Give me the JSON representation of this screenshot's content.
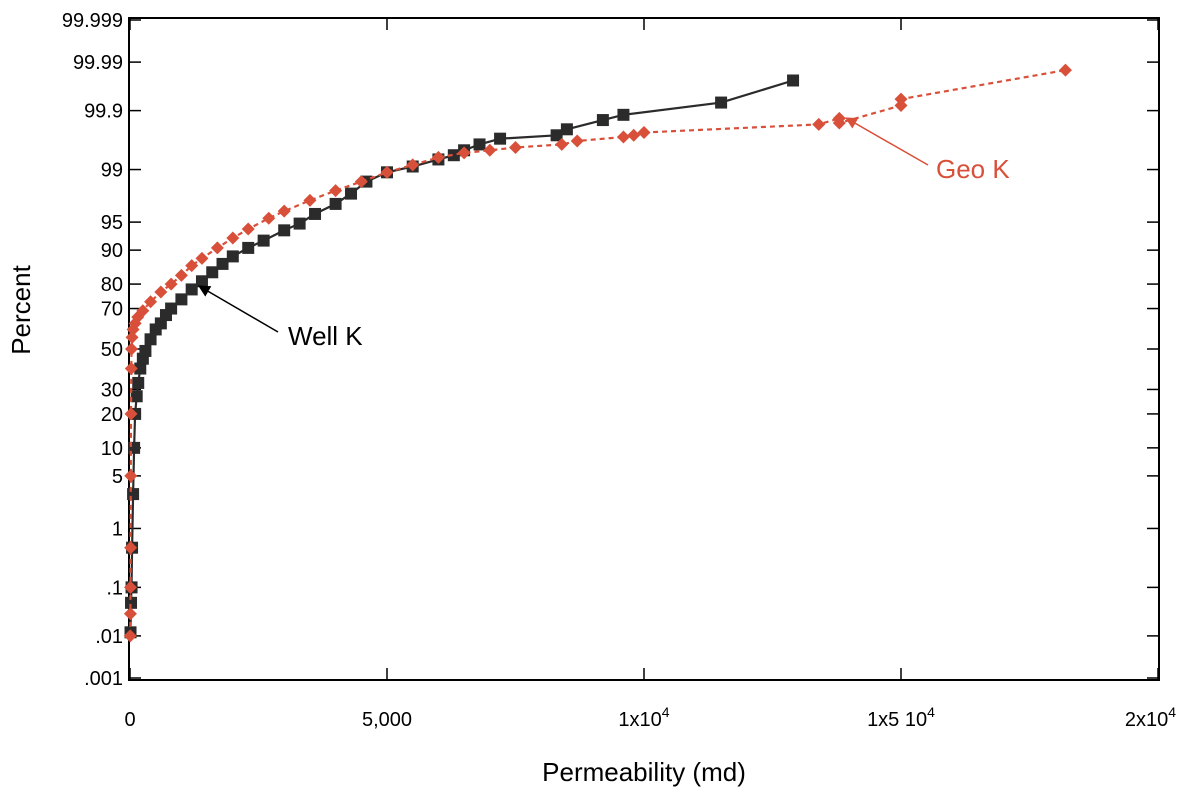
{
  "chart_data": {
    "type": "scatter",
    "title": "",
    "xlabel": "Permeability (md)",
    "ylabel": "Percent",
    "xlim": [
      0,
      20000
    ],
    "y_scale": "probability",
    "ylim": [
      0.001,
      99.999
    ],
    "grid": false,
    "legend": "none",
    "x_ticks": [
      {
        "value": 0,
        "label": "0"
      },
      {
        "value": 5000,
        "label": "5,000"
      },
      {
        "value": 10000,
        "label": "1x10^4"
      },
      {
        "value": 15000,
        "label": "1x5 10^4"
      },
      {
        "value": 20000,
        "label": "2x10^4"
      }
    ],
    "y_ticks": [
      {
        "value": 0.001,
        "label": ".001"
      },
      {
        "value": 0.01,
        "label": ".01"
      },
      {
        "value": 0.1,
        "label": ".1"
      },
      {
        "value": 1,
        "label": "1"
      },
      {
        "value": 5,
        "label": "5"
      },
      {
        "value": 10,
        "label": "10"
      },
      {
        "value": 20,
        "label": "20"
      },
      {
        "value": 30,
        "label": "30"
      },
      {
        "value": 50,
        "label": "50"
      },
      {
        "value": 70,
        "label": "70"
      },
      {
        "value": 80,
        "label": "80"
      },
      {
        "value": 90,
        "label": "90"
      },
      {
        "value": 95,
        "label": "95"
      },
      {
        "value": 99,
        "label": "99"
      },
      {
        "value": 99.9,
        "label": "99.9"
      },
      {
        "value": 99.99,
        "label": "99.99"
      },
      {
        "value": 99.999,
        "label": "99.999"
      }
    ],
    "series": [
      {
        "name": "Well K",
        "color": "#2b2b2b",
        "marker": "square",
        "line": "solid",
        "points": [
          [
            10,
            0.012
          ],
          [
            20,
            0.05
          ],
          [
            30,
            0.1
          ],
          [
            40,
            0.5
          ],
          [
            60,
            3
          ],
          [
            80,
            10
          ],
          [
            100,
            20
          ],
          [
            130,
            27
          ],
          [
            160,
            33
          ],
          [
            200,
            40
          ],
          [
            250,
            45
          ],
          [
            300,
            49
          ],
          [
            400,
            55
          ],
          [
            500,
            60
          ],
          [
            600,
            63
          ],
          [
            700,
            67
          ],
          [
            800,
            70
          ],
          [
            1000,
            74
          ],
          [
            1200,
            78
          ],
          [
            1400,
            81
          ],
          [
            1600,
            84
          ],
          [
            1800,
            86.5
          ],
          [
            2000,
            88.5
          ],
          [
            2300,
            90.5
          ],
          [
            2600,
            92
          ],
          [
            3000,
            93.8
          ],
          [
            3300,
            94.8
          ],
          [
            3600,
            96
          ],
          [
            4000,
            97
          ],
          [
            4300,
            97.8
          ],
          [
            4600,
            98.5
          ],
          [
            5000,
            98.9
          ],
          [
            5500,
            99.1
          ],
          [
            6000,
            99.3
          ],
          [
            6300,
            99.4
          ],
          [
            6500,
            99.5
          ],
          [
            6800,
            99.6
          ],
          [
            7200,
            99.68
          ],
          [
            8300,
            99.72
          ],
          [
            8500,
            99.78
          ],
          [
            9200,
            99.85
          ],
          [
            9600,
            99.88
          ],
          [
            11500,
            99.93
          ],
          [
            12900,
            99.975
          ]
        ]
      },
      {
        "name": "Geo K",
        "color": "#d9503a",
        "marker": "diamond",
        "line": "dashed",
        "points": [
          [
            5,
            0.01
          ],
          [
            8,
            0.03
          ],
          [
            10,
            0.1
          ],
          [
            12,
            0.5
          ],
          [
            15,
            5
          ],
          [
            20,
            20
          ],
          [
            25,
            40
          ],
          [
            30,
            50
          ],
          [
            40,
            56
          ],
          [
            60,
            60
          ],
          [
            100,
            63
          ],
          [
            150,
            66
          ],
          [
            250,
            69
          ],
          [
            400,
            73
          ],
          [
            600,
            77
          ],
          [
            800,
            80
          ],
          [
            1000,
            83
          ],
          [
            1200,
            86
          ],
          [
            1400,
            88
          ],
          [
            1700,
            90.5
          ],
          [
            2000,
            92.5
          ],
          [
            2300,
            94
          ],
          [
            2700,
            95.5
          ],
          [
            3000,
            96.3
          ],
          [
            3500,
            97.3
          ],
          [
            4000,
            98
          ],
          [
            4500,
            98.5
          ],
          [
            5000,
            98.9
          ],
          [
            5500,
            99.15
          ],
          [
            6000,
            99.35
          ],
          [
            6500,
            99.45
          ],
          [
            7000,
            99.5
          ],
          [
            7500,
            99.55
          ],
          [
            8400,
            99.6
          ],
          [
            8700,
            99.65
          ],
          [
            9600,
            99.7
          ],
          [
            9800,
            99.72
          ],
          [
            10000,
            99.75
          ],
          [
            13400,
            99.82
          ],
          [
            13800,
            99.86
          ],
          [
            13800,
            99.83
          ],
          [
            15000,
            99.92
          ],
          [
            15000,
            99.94
          ],
          [
            18200,
            99.985
          ]
        ]
      }
    ],
    "annotations": [
      {
        "text": "Well K",
        "color": "#000000",
        "arrow_to": [
          1350,
          82
        ]
      },
      {
        "text": "Geo K",
        "color": "#d9503a",
        "arrow_to": [
          13900,
          99.8
        ]
      }
    ]
  }
}
